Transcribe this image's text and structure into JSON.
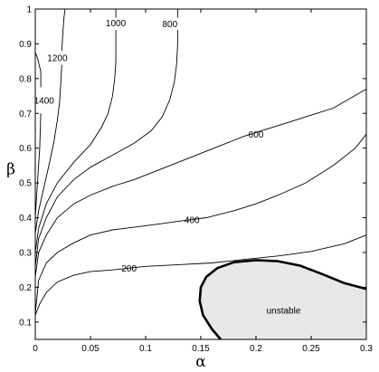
{
  "chart_data": {
    "type": "contour",
    "title": "",
    "xlabel": "α",
    "ylabel": "β",
    "xlim": [
      0,
      0.3
    ],
    "ylim": [
      0.05,
      1
    ],
    "x_ticks": [
      {
        "value": 0,
        "label": "0"
      },
      {
        "value": 0.05,
        "label": "0.05"
      },
      {
        "value": 0.1,
        "label": "0.1"
      },
      {
        "value": 0.15,
        "label": "0.15"
      },
      {
        "value": 0.2,
        "label": "0.2"
      },
      {
        "value": 0.25,
        "label": "0.25"
      },
      {
        "value": 0.3,
        "label": "0.3"
      }
    ],
    "y_ticks": [
      {
        "value": 0.1,
        "label": "0.1"
      },
      {
        "value": 0.2,
        "label": "0.2"
      },
      {
        "value": 0.3,
        "label": "0.3"
      },
      {
        "value": 0.4,
        "label": "0.4"
      },
      {
        "value": 0.5,
        "label": "0.5"
      },
      {
        "value": 0.6,
        "label": "0.6"
      },
      {
        "value": 0.7,
        "label": "0.7"
      },
      {
        "value": 0.8,
        "label": "0.8"
      },
      {
        "value": 0.9,
        "label": "0.9"
      },
      {
        "value": 1,
        "label": "1"
      }
    ],
    "grid": false,
    "contours": [
      {
        "label": "200",
        "label_at": [
          0.085,
          0.2545
        ],
        "points": [
          [
            0,
            0.12
          ],
          [
            0.004,
            0.152
          ],
          [
            0.01,
            0.185
          ],
          [
            0.02,
            0.215
          ],
          [
            0.035,
            0.235
          ],
          [
            0.05,
            0.245
          ],
          [
            0.07,
            0.25
          ],
          [
            0.1,
            0.26
          ],
          [
            0.13,
            0.265
          ],
          [
            0.16,
            0.27
          ],
          [
            0.19,
            0.28
          ],
          [
            0.22,
            0.29
          ],
          [
            0.25,
            0.303
          ],
          [
            0.28,
            0.325
          ],
          [
            0.3,
            0.35
          ]
        ]
      },
      {
        "label": "",
        "label_at": null,
        "points": [
          [
            0,
            0.125
          ],
          [
            0.003,
            0.22
          ],
          [
            0.01,
            0.27
          ],
          [
            0.02,
            0.3
          ],
          [
            0.035,
            0.328
          ],
          [
            0.05,
            0.35
          ],
          [
            0.07,
            0.365
          ],
          [
            0.09,
            0.373
          ]
        ]
      },
      {
        "label": "400",
        "label_at": [
          0.142,
          0.394
        ],
        "points": [
          [
            0.09,
            0.373
          ],
          [
            0.11,
            0.381
          ],
          [
            0.13,
            0.39
          ],
          [
            0.155,
            0.4
          ],
          [
            0.18,
            0.42
          ],
          [
            0.2,
            0.44
          ],
          [
            0.22,
            0.465
          ],
          [
            0.245,
            0.5
          ],
          [
            0.27,
            0.55
          ],
          [
            0.29,
            0.6
          ],
          [
            0.3,
            0.64
          ]
        ]
      },
      {
        "label": "",
        "label_at": null,
        "points": [
          [
            0,
            0.23
          ],
          [
            0.003,
            0.3
          ],
          [
            0.01,
            0.35
          ],
          [
            0.02,
            0.4
          ],
          [
            0.035,
            0.44
          ],
          [
            0.05,
            0.465
          ],
          [
            0.07,
            0.49
          ],
          [
            0.09,
            0.51
          ],
          [
            0.11,
            0.535
          ],
          [
            0.13,
            0.56
          ],
          [
            0.15,
            0.585
          ],
          [
            0.17,
            0.61
          ]
        ]
      },
      {
        "label": "600",
        "label_at": [
          0.2,
          0.6395
        ],
        "points": [
          [
            0.17,
            0.61
          ],
          [
            0.19,
            0.635
          ],
          [
            0.21,
            0.655
          ],
          [
            0.23,
            0.675
          ],
          [
            0.25,
            0.695
          ],
          [
            0.27,
            0.715
          ],
          [
            0.3,
            0.77
          ]
        ]
      },
      {
        "label": "800",
        "label_at": [
          0.122,
          0.9565
        ],
        "points": [
          [
            0,
            0.26
          ],
          [
            0.003,
            0.34
          ],
          [
            0.01,
            0.4
          ],
          [
            0.02,
            0.46
          ],
          [
            0.035,
            0.51
          ],
          [
            0.05,
            0.545
          ],
          [
            0.07,
            0.58
          ],
          [
            0.09,
            0.615
          ],
          [
            0.105,
            0.65
          ],
          [
            0.115,
            0.69
          ],
          [
            0.122,
            0.74
          ],
          [
            0.126,
            0.79
          ],
          [
            0.128,
            0.84
          ],
          [
            0.129,
            0.9
          ],
          [
            0.129,
            0.94
          ]
        ]
      },
      {
        "label": "",
        "label_at": null,
        "points": [
          [
            0.129,
            0.975
          ],
          [
            0.129,
            1.0
          ]
        ]
      },
      {
        "label": "1000",
        "label_at": [
          0.073,
          0.9595
        ],
        "points": [
          [
            0,
            0.3
          ],
          [
            0.003,
            0.37
          ],
          [
            0.01,
            0.44
          ],
          [
            0.02,
            0.5
          ],
          [
            0.035,
            0.56
          ],
          [
            0.05,
            0.61
          ],
          [
            0.06,
            0.66
          ],
          [
            0.066,
            0.7
          ],
          [
            0.07,
            0.75
          ],
          [
            0.072,
            0.8
          ],
          [
            0.073,
            0.85
          ],
          [
            0.073,
            0.9
          ],
          [
            0.073,
            0.94
          ]
        ]
      },
      {
        "label": "",
        "label_at": null,
        "points": [
          [
            0.073,
            0.975
          ],
          [
            0.073,
            1.0
          ]
        ]
      },
      {
        "label": "1200",
        "label_at": [
          0.02,
          0.8595
        ],
        "points": [
          [
            0,
            0.355
          ],
          [
            0.003,
            0.42
          ],
          [
            0.008,
            0.49
          ],
          [
            0.013,
            0.56
          ],
          [
            0.017,
            0.62
          ],
          [
            0.02,
            0.68
          ],
          [
            0.022,
            0.73
          ],
          [
            0.023,
            0.78
          ],
          [
            0.024,
            0.84
          ]
        ]
      },
      {
        "label": "",
        "label_at": null,
        "points": [
          [
            0.024,
            0.88
          ],
          [
            0.025,
            0.93
          ],
          [
            0.026,
            0.975
          ],
          [
            0.027,
            1.0
          ]
        ]
      },
      {
        "label": "1400",
        "label_at": [
          0.008,
          0.7365
        ],
        "points": [
          [
            0,
            0.4
          ],
          [
            0.002,
            0.5
          ],
          [
            0.004,
            0.6
          ],
          [
            0.005,
            0.7
          ]
        ]
      },
      {
        "label": "",
        "label_at": null,
        "points": [
          [
            0.005,
            0.775
          ],
          [
            0.005,
            0.82
          ],
          [
            0.002,
            0.86
          ],
          [
            0,
            0.875
          ]
        ]
      }
    ],
    "region": {
      "label": "unstable",
      "label_at": [
        0.225,
        0.133
      ],
      "fill": "#e8e8e8",
      "stroke": "#000000",
      "boundary": [
        [
          0.168,
          0.05
        ],
        [
          0.16,
          0.08
        ],
        [
          0.152,
          0.12
        ],
        [
          0.149,
          0.16
        ],
        [
          0.15,
          0.2
        ],
        [
          0.155,
          0.23
        ],
        [
          0.165,
          0.255
        ],
        [
          0.18,
          0.272
        ],
        [
          0.2,
          0.278
        ],
        [
          0.22,
          0.275
        ],
        [
          0.24,
          0.262
        ],
        [
          0.26,
          0.238
        ],
        [
          0.28,
          0.212
        ],
        [
          0.3,
          0.195
        ],
        [
          0.3,
          0.05
        ]
      ]
    }
  }
}
